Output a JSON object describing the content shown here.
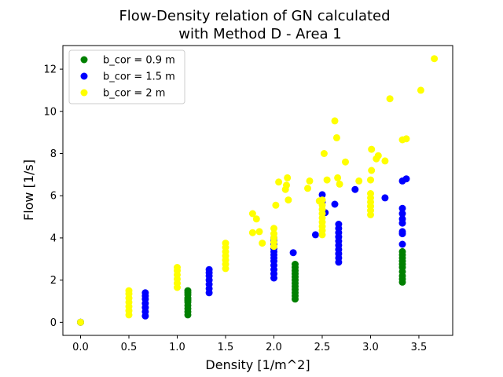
{
  "chart_data": {
    "type": "scatter",
    "title_lines": [
      "Flow-Density relation of GN calculated",
      "with Method D - Area 1"
    ],
    "xlabel": "Density [1/m^2]",
    "ylabel": "Flow [1/s]",
    "xlim": [
      -0.183,
      3.85
    ],
    "ylim": [
      -0.62,
      13.12
    ],
    "xticks": [
      0.0,
      0.5,
      1.0,
      1.5,
      2.0,
      2.5,
      3.0,
      3.5
    ],
    "yticks": [
      0,
      2,
      4,
      6,
      8,
      10,
      12
    ],
    "xtick_labels": [
      "0.0",
      "0.5",
      "1.0",
      "1.5",
      "2.0",
      "2.5",
      "3.0",
      "3.5"
    ],
    "ytick_labels": [
      "0",
      "2",
      "4",
      "6",
      "8",
      "10",
      "12"
    ],
    "grid": false,
    "legend_position": "top-left",
    "series": [
      {
        "name": "b_cor = 0.9 m",
        "color": "#008000",
        "points": [
          [
            0.0,
            0.0
          ],
          [
            1.11,
            0.35
          ],
          [
            1.11,
            0.5
          ],
          [
            1.11,
            0.65
          ],
          [
            1.11,
            0.8
          ],
          [
            1.11,
            0.95
          ],
          [
            1.11,
            1.05
          ],
          [
            1.11,
            1.15
          ],
          [
            1.11,
            1.3
          ],
          [
            1.11,
            1.4
          ],
          [
            1.11,
            1.5
          ],
          [
            2.22,
            1.1
          ],
          [
            2.22,
            1.25
          ],
          [
            2.22,
            1.4
          ],
          [
            2.22,
            1.55
          ],
          [
            2.22,
            1.7
          ],
          [
            2.22,
            1.85
          ],
          [
            2.22,
            2.0
          ],
          [
            2.22,
            2.15
          ],
          [
            2.22,
            2.3
          ],
          [
            2.22,
            2.45
          ],
          [
            2.22,
            2.6
          ],
          [
            2.22,
            2.75
          ],
          [
            3.33,
            1.9
          ],
          [
            3.33,
            2.05
          ],
          [
            3.33,
            2.2
          ],
          [
            3.33,
            2.4
          ],
          [
            3.33,
            2.6
          ],
          [
            3.33,
            2.75
          ],
          [
            3.33,
            2.9
          ],
          [
            3.33,
            3.05
          ],
          [
            3.33,
            3.2
          ],
          [
            3.33,
            3.35
          ]
        ]
      },
      {
        "name": "b_cor = 1.5 m",
        "color": "#0000ff",
        "points": [
          [
            0.0,
            0.0
          ],
          [
            0.67,
            0.3
          ],
          [
            0.67,
            0.5
          ],
          [
            0.67,
            0.7
          ],
          [
            0.67,
            0.9
          ],
          [
            0.67,
            1.1
          ],
          [
            0.67,
            1.25
          ],
          [
            0.67,
            1.4
          ],
          [
            1.33,
            1.4
          ],
          [
            1.33,
            1.6
          ],
          [
            1.33,
            1.8
          ],
          [
            1.33,
            2.0
          ],
          [
            1.33,
            2.2
          ],
          [
            1.33,
            2.35
          ],
          [
            1.33,
            2.5
          ],
          [
            2.0,
            2.1
          ],
          [
            2.0,
            2.3
          ],
          [
            2.0,
            2.5
          ],
          [
            2.0,
            2.7
          ],
          [
            2.0,
            2.9
          ],
          [
            2.0,
            3.05
          ],
          [
            2.0,
            3.2
          ],
          [
            2.0,
            3.35
          ],
          [
            2.0,
            3.5
          ],
          [
            2.0,
            3.7
          ],
          [
            2.0,
            3.85
          ],
          [
            2.0,
            4.0
          ],
          [
            2.2,
            3.3
          ],
          [
            2.43,
            4.15
          ],
          [
            2.5,
            6.05
          ],
          [
            2.5,
            5.7
          ],
          [
            2.53,
            5.2
          ],
          [
            2.63,
            5.6
          ],
          [
            2.84,
            6.3
          ],
          [
            2.67,
            2.85
          ],
          [
            2.67,
            3.05
          ],
          [
            2.67,
            3.25
          ],
          [
            2.67,
            3.45
          ],
          [
            2.67,
            3.65
          ],
          [
            2.67,
            3.85
          ],
          [
            2.67,
            4.05
          ],
          [
            2.67,
            4.25
          ],
          [
            2.67,
            4.45
          ],
          [
            2.67,
            4.65
          ],
          [
            3.15,
            5.9
          ],
          [
            3.33,
            3.7
          ],
          [
            3.33,
            4.2
          ],
          [
            3.33,
            4.3
          ],
          [
            3.33,
            4.7
          ],
          [
            3.33,
            4.9
          ],
          [
            3.33,
            5.15
          ],
          [
            3.33,
            5.4
          ],
          [
            3.33,
            6.7
          ],
          [
            3.37,
            6.8
          ]
        ]
      },
      {
        "name": "b_cor = 2 m",
        "color": "#ffff00",
        "points": [
          [
            0.0,
            0.0
          ],
          [
            0.5,
            0.35
          ],
          [
            0.5,
            0.55
          ],
          [
            0.5,
            0.75
          ],
          [
            0.5,
            0.95
          ],
          [
            0.5,
            1.15
          ],
          [
            0.5,
            1.35
          ],
          [
            0.5,
            1.5
          ],
          [
            1.0,
            1.65
          ],
          [
            1.0,
            1.85
          ],
          [
            1.0,
            2.05
          ],
          [
            1.0,
            2.25
          ],
          [
            1.0,
            2.45
          ],
          [
            1.0,
            2.6
          ],
          [
            1.5,
            2.55
          ],
          [
            1.5,
            2.75
          ],
          [
            1.5,
            2.95
          ],
          [
            1.5,
            3.15
          ],
          [
            1.5,
            3.35
          ],
          [
            1.5,
            3.55
          ],
          [
            1.5,
            3.75
          ],
          [
            1.78,
            4.25
          ],
          [
            1.78,
            5.15
          ],
          [
            1.82,
            4.9
          ],
          [
            1.85,
            4.3
          ],
          [
            1.88,
            3.75
          ],
          [
            2.0,
            3.6
          ],
          [
            2.0,
            3.8
          ],
          [
            2.0,
            4.0
          ],
          [
            2.0,
            4.2
          ],
          [
            2.0,
            4.45
          ],
          [
            2.02,
            5.55
          ],
          [
            2.05,
            6.65
          ],
          [
            2.12,
            6.3
          ],
          [
            2.13,
            6.5
          ],
          [
            2.14,
            6.85
          ],
          [
            2.15,
            5.8
          ],
          [
            2.35,
            6.35
          ],
          [
            2.37,
            6.7
          ],
          [
            2.47,
            5.75
          ],
          [
            2.5,
            4.15
          ],
          [
            2.5,
            4.35
          ],
          [
            2.5,
            4.55
          ],
          [
            2.5,
            4.75
          ],
          [
            2.5,
            4.95
          ],
          [
            2.5,
            5.15
          ],
          [
            2.5,
            5.35
          ],
          [
            2.5,
            5.55
          ],
          [
            2.5,
            5.8
          ],
          [
            2.52,
            8.0
          ],
          [
            2.55,
            6.75
          ],
          [
            2.63,
            9.55
          ],
          [
            2.65,
            8.75
          ],
          [
            2.66,
            6.85
          ],
          [
            2.68,
            6.55
          ],
          [
            2.74,
            7.6
          ],
          [
            2.88,
            6.7
          ],
          [
            3.0,
            5.1
          ],
          [
            3.0,
            5.3
          ],
          [
            3.0,
            5.5
          ],
          [
            3.0,
            5.7
          ],
          [
            3.0,
            5.9
          ],
          [
            3.0,
            6.1
          ],
          [
            3.0,
            6.75
          ],
          [
            3.01,
            7.2
          ],
          [
            3.01,
            8.2
          ],
          [
            3.06,
            7.75
          ],
          [
            3.08,
            7.9
          ],
          [
            3.15,
            7.65
          ],
          [
            3.2,
            10.6
          ],
          [
            3.33,
            8.65
          ],
          [
            3.37,
            8.7
          ],
          [
            3.52,
            11.0
          ],
          [
            3.66,
            12.5
          ]
        ]
      }
    ]
  }
}
